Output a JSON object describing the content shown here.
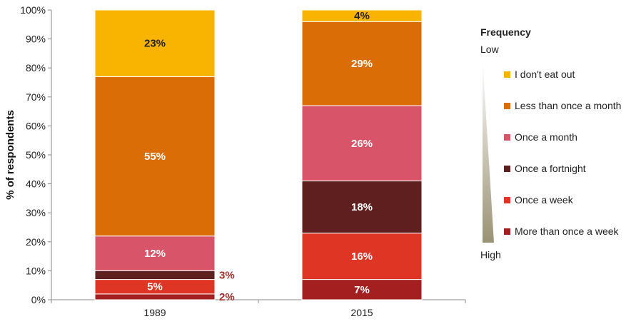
{
  "chart_data": {
    "type": "bar",
    "stacked": true,
    "ylabel": "% of respondents",
    "ylim": [
      0,
      100
    ],
    "yticks": [
      "0%",
      "10%",
      "20%",
      "30%",
      "40%",
      "50%",
      "60%",
      "70%",
      "80%",
      "90%",
      "100%"
    ],
    "categories": [
      "1989",
      "2015"
    ],
    "series": [
      {
        "name": "More than once a week",
        "color": "#A31F20",
        "values": [
          2,
          7
        ],
        "labels": [
          "2%",
          "7%"
        ]
      },
      {
        "name": "Once a week",
        "color": "#DF3524",
        "values": [
          5,
          16
        ],
        "labels": [
          "5%",
          "16%"
        ]
      },
      {
        "name": "Once a fortnight",
        "color": "#5E1F1E",
        "values": [
          3,
          18
        ],
        "labels": [
          "3%",
          "18%"
        ]
      },
      {
        "name": "Once a month",
        "color": "#D85468",
        "values": [
          12,
          26
        ],
        "labels": [
          "12%",
          "26%"
        ]
      },
      {
        "name": "Less than once a month",
        "color": "#DB6D07",
        "values": [
          55,
          29
        ],
        "labels": [
          "55%",
          "29%"
        ]
      },
      {
        "name": "I don't eat out",
        "color": "#F8B400",
        "values": [
          23,
          4
        ],
        "labels": [
          "23%",
          "4%"
        ]
      }
    ],
    "legend": {
      "title": "Frequency",
      "low_label": "Low",
      "high_label": "High",
      "placement": "right"
    }
  }
}
